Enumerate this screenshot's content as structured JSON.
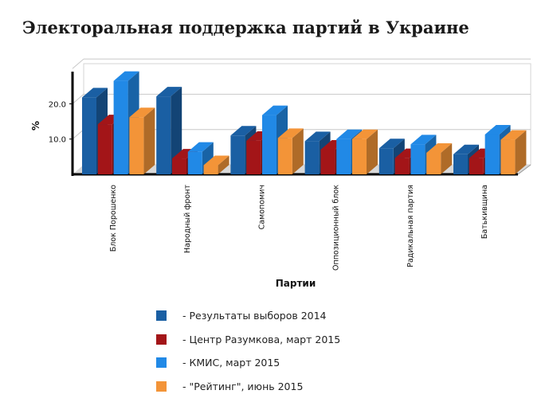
{
  "title": "Электоральная поддержка партий в Украине",
  "chart_data": {
    "type": "bar",
    "title": "Электоральная поддержка партий в Украине",
    "xlabel": "Партии",
    "ylabel": "%",
    "ylim": [
      0,
      30
    ],
    "yticks": [
      "10.0",
      "20.0"
    ],
    "grid": true,
    "legend_position": "bottom",
    "categories": [
      "Блок Порошенко",
      "Народный фронт",
      "Самопомич",
      "Оппозиционный блок",
      "Радикальная партия",
      "Батькивщина"
    ],
    "series": [
      {
        "name": "- Результаты выборов 2014",
        "color": "#1a5fa3",
        "values": [
          21.8,
          22.1,
          11.0,
          9.4,
          7.4,
          5.7
        ]
      },
      {
        "name": "- Центр Разумкова, март 2015",
        "color": "#a31518",
        "values": [
          14.2,
          4.5,
          9.5,
          7.0,
          4.6,
          4.6
        ]
      },
      {
        "name": "- КМИС, март 2015",
        "color": "#2189e6",
        "values": [
          26.5,
          6.4,
          16.8,
          10.0,
          8.5,
          11.3
        ]
      },
      {
        "name": "- \"Рейтинг\", июнь 2015",
        "color": "#f39438",
        "values": [
          16.2,
          2.6,
          10.3,
          10.0,
          6.1,
          9.8
        ]
      }
    ]
  }
}
